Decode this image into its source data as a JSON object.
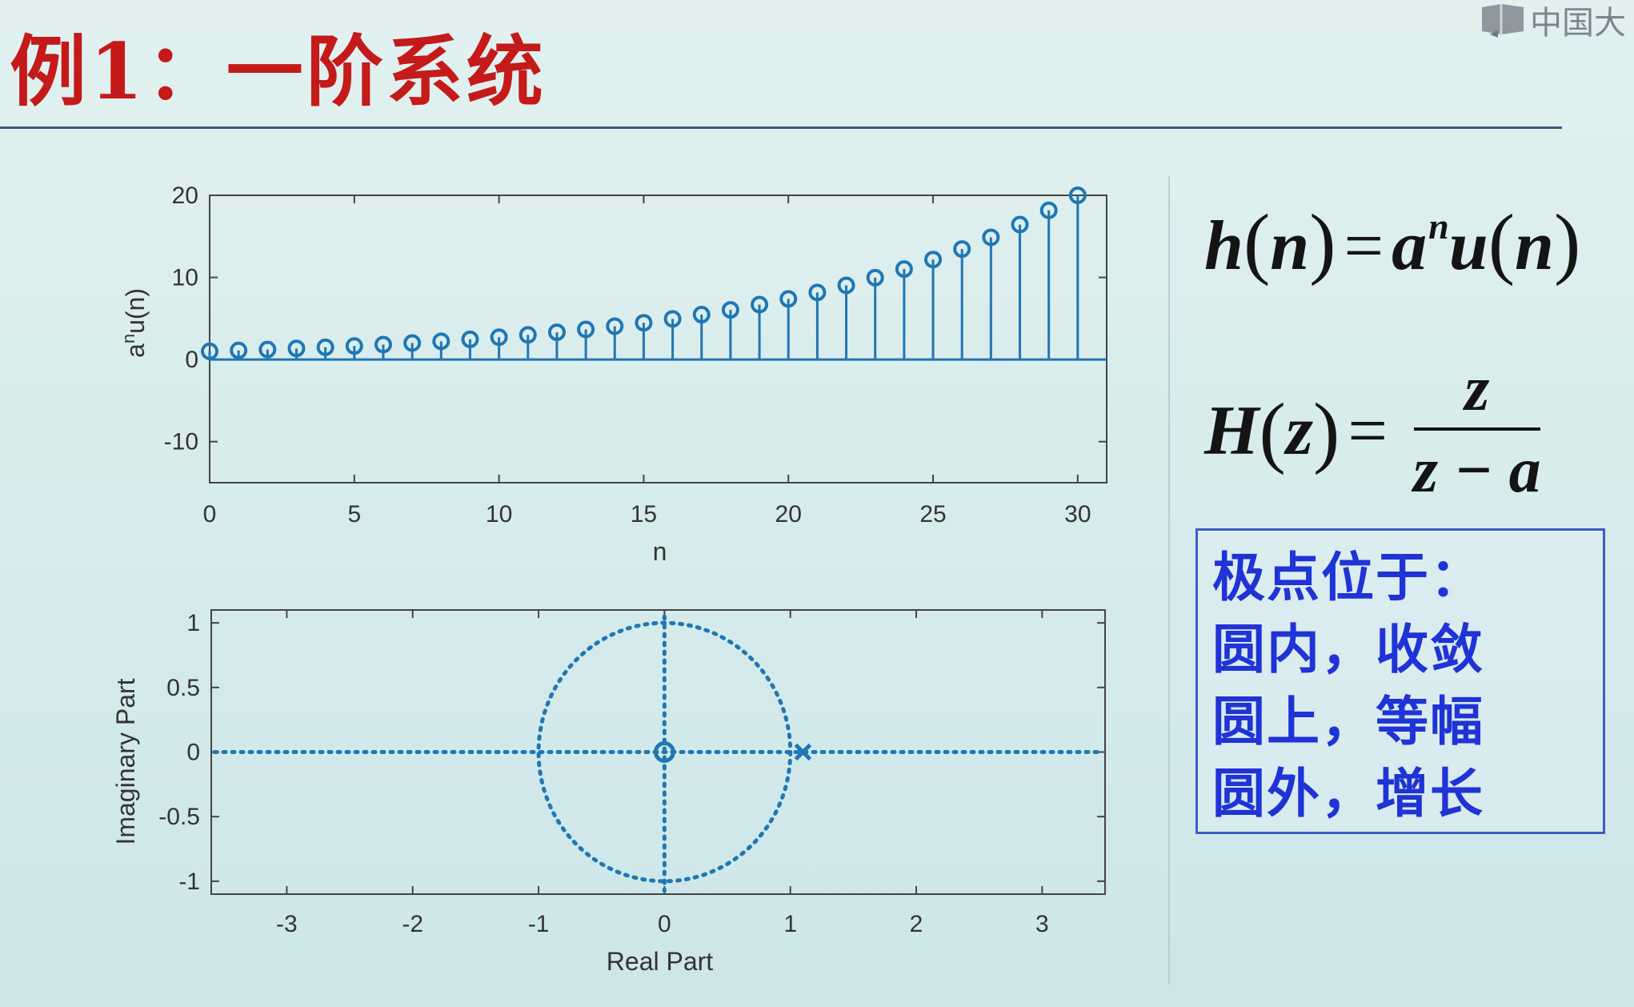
{
  "slide": {
    "title": "例1：一阶系统",
    "logo_text": "中国大",
    "formula_h": {
      "lhs": "h",
      "arg": "n",
      "rhs_a": "a",
      "rhs_exp": "n",
      "rhs_u": "u"
    },
    "formula_H": {
      "lhs": "H",
      "arg": "z",
      "numerator": "z",
      "denominator": "z − a"
    },
    "box_lines": [
      "极点位于：",
      "圆内，收敛",
      "圆上，等幅",
      "圆外，增长"
    ]
  },
  "colors": {
    "title": "#c41a1a",
    "stem": "#1f77b4",
    "box_text": "#1f33d6",
    "box_border": "#3b5fc2"
  },
  "chart_data": [
    {
      "type": "stem",
      "xlabel": "n",
      "ylabel": "a^n u(n)",
      "ylabel_base": "a",
      "ylabel_sup": "n",
      "ylabel_rest": "u(n)",
      "xlim": [
        0,
        31
      ],
      "ylim": [
        -15,
        20
      ],
      "xticks": [
        0,
        5,
        10,
        15,
        20,
        25,
        30
      ],
      "xtick_labels": [
        "0",
        "5",
        "10",
        "15",
        "20",
        "25",
        "30"
      ],
      "yticks": [
        -10,
        0,
        10,
        20
      ],
      "ytick_labels": [
        "-10",
        "0",
        "10",
        "20"
      ],
      "x": [
        0,
        1,
        2,
        3,
        4,
        5,
        6,
        7,
        8,
        9,
        10,
        11,
        12,
        13,
        14,
        15,
        16,
        17,
        18,
        19,
        20,
        21,
        22,
        23,
        24,
        25,
        26,
        27,
        28,
        29,
        30
      ],
      "y": [
        1.0,
        1.11,
        1.22,
        1.35,
        1.49,
        1.65,
        1.82,
        2.01,
        2.22,
        2.46,
        2.72,
        3.0,
        3.32,
        3.67,
        4.06,
        4.48,
        4.95,
        5.47,
        6.05,
        6.69,
        7.39,
        8.17,
        9.03,
        9.97,
        11.02,
        12.18,
        13.46,
        14.88,
        16.44,
        18.17,
        20.0
      ],
      "marker": "circle",
      "grid": false
    },
    {
      "type": "scatter",
      "xlabel": "Real Part",
      "ylabel": "Imaginary Part",
      "xlim": [
        -3.6,
        3.5
      ],
      "ylim": [
        -1.1,
        1.1
      ],
      "xticks": [
        -3,
        -2,
        -1,
        0,
        1,
        2,
        3
      ],
      "xtick_labels": [
        "-3",
        "-2",
        "-1",
        "0",
        "1",
        "2",
        "3"
      ],
      "yticks": [
        -1,
        -0.5,
        0,
        0.5,
        1
      ],
      "ytick_labels": [
        "-1",
        "-0.5",
        "0",
        "0.5",
        "1"
      ],
      "zeros": [
        [
          0,
          0
        ]
      ],
      "poles": [
        [
          1.1,
          0
        ]
      ],
      "unit_circle": true,
      "grid": false
    }
  ]
}
